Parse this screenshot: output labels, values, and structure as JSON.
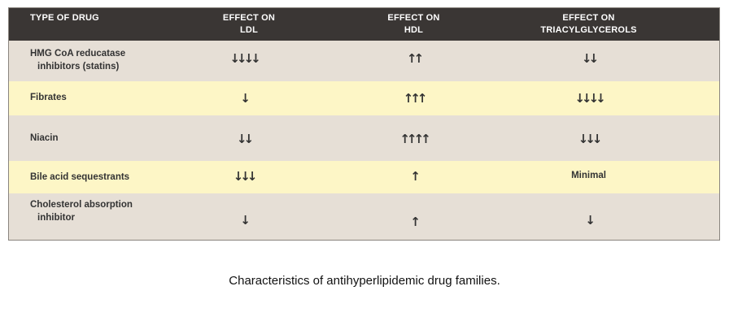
{
  "table": {
    "headers": [
      {
        "l1": "Type of drug",
        "l2": ""
      },
      {
        "l1": "Effect on",
        "l2": "LDL"
      },
      {
        "l1": "Effect on",
        "l2": "HDL"
      },
      {
        "l1": "Effect on",
        "l2": "Triacylglycerols"
      }
    ],
    "rows": [
      {
        "drug_l1": "HMG CoA reducatase",
        "drug_l2": "inhibitors (statins)",
        "ldl": "↓↓↓↓",
        "hdl": "↑↑",
        "tg": "↓↓"
      },
      {
        "drug_l1": "Fibrates",
        "drug_l2": "",
        "ldl": "↓",
        "hdl": "↑↑↑",
        "tg": "↓↓↓↓"
      },
      {
        "drug_l1": "Niacin",
        "drug_l2": "",
        "ldl": "↓↓",
        "hdl": "↑↑↑↑",
        "tg": "↓↓↓"
      },
      {
        "drug_l1": "Bile acid sequestrants",
        "drug_l2": "",
        "ldl": "↓↓↓",
        "hdl": "↑",
        "tg": "Minimal"
      },
      {
        "drug_l1": "Cholesterol absorption",
        "drug_l2": "inhibitor",
        "ldl": "↓",
        "hdl": "↑",
        "tg": "↓"
      }
    ]
  },
  "caption": "Characteristics of antihyperlipidemic drug families."
}
